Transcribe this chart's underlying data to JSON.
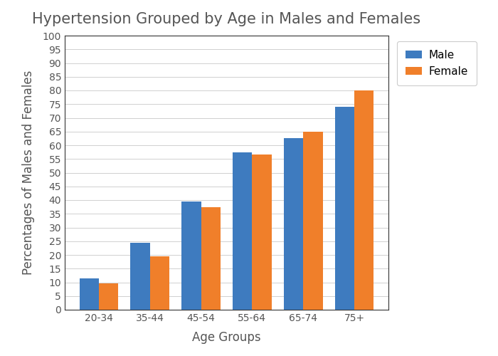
{
  "title": "Hypertension Grouped by Age in Males and Females",
  "xlabel": "Age Groups",
  "ylabel": "Percentages of Males and Females",
  "categories": [
    "20-34",
    "35-44",
    "45-54",
    "55-64",
    "65-74",
    "75+"
  ],
  "male_values": [
    11.5,
    24.5,
    39.5,
    57.5,
    62.5,
    74
  ],
  "female_values": [
    9.5,
    19.5,
    37.5,
    56.5,
    65,
    80
  ],
  "male_color": "#3e7bbf",
  "female_color": "#f07f2a",
  "ylim": [
    0,
    100
  ],
  "yticks": [
    0,
    5,
    10,
    15,
    20,
    25,
    30,
    35,
    40,
    45,
    50,
    55,
    60,
    65,
    70,
    75,
    80,
    85,
    90,
    95,
    100
  ],
  "bar_width": 0.38,
  "legend_labels": [
    "Male",
    "Female"
  ],
  "background_color": "#ffffff",
  "grid_color": "#d0d0d0",
  "title_fontsize": 15,
  "label_fontsize": 12,
  "tick_fontsize": 10
}
